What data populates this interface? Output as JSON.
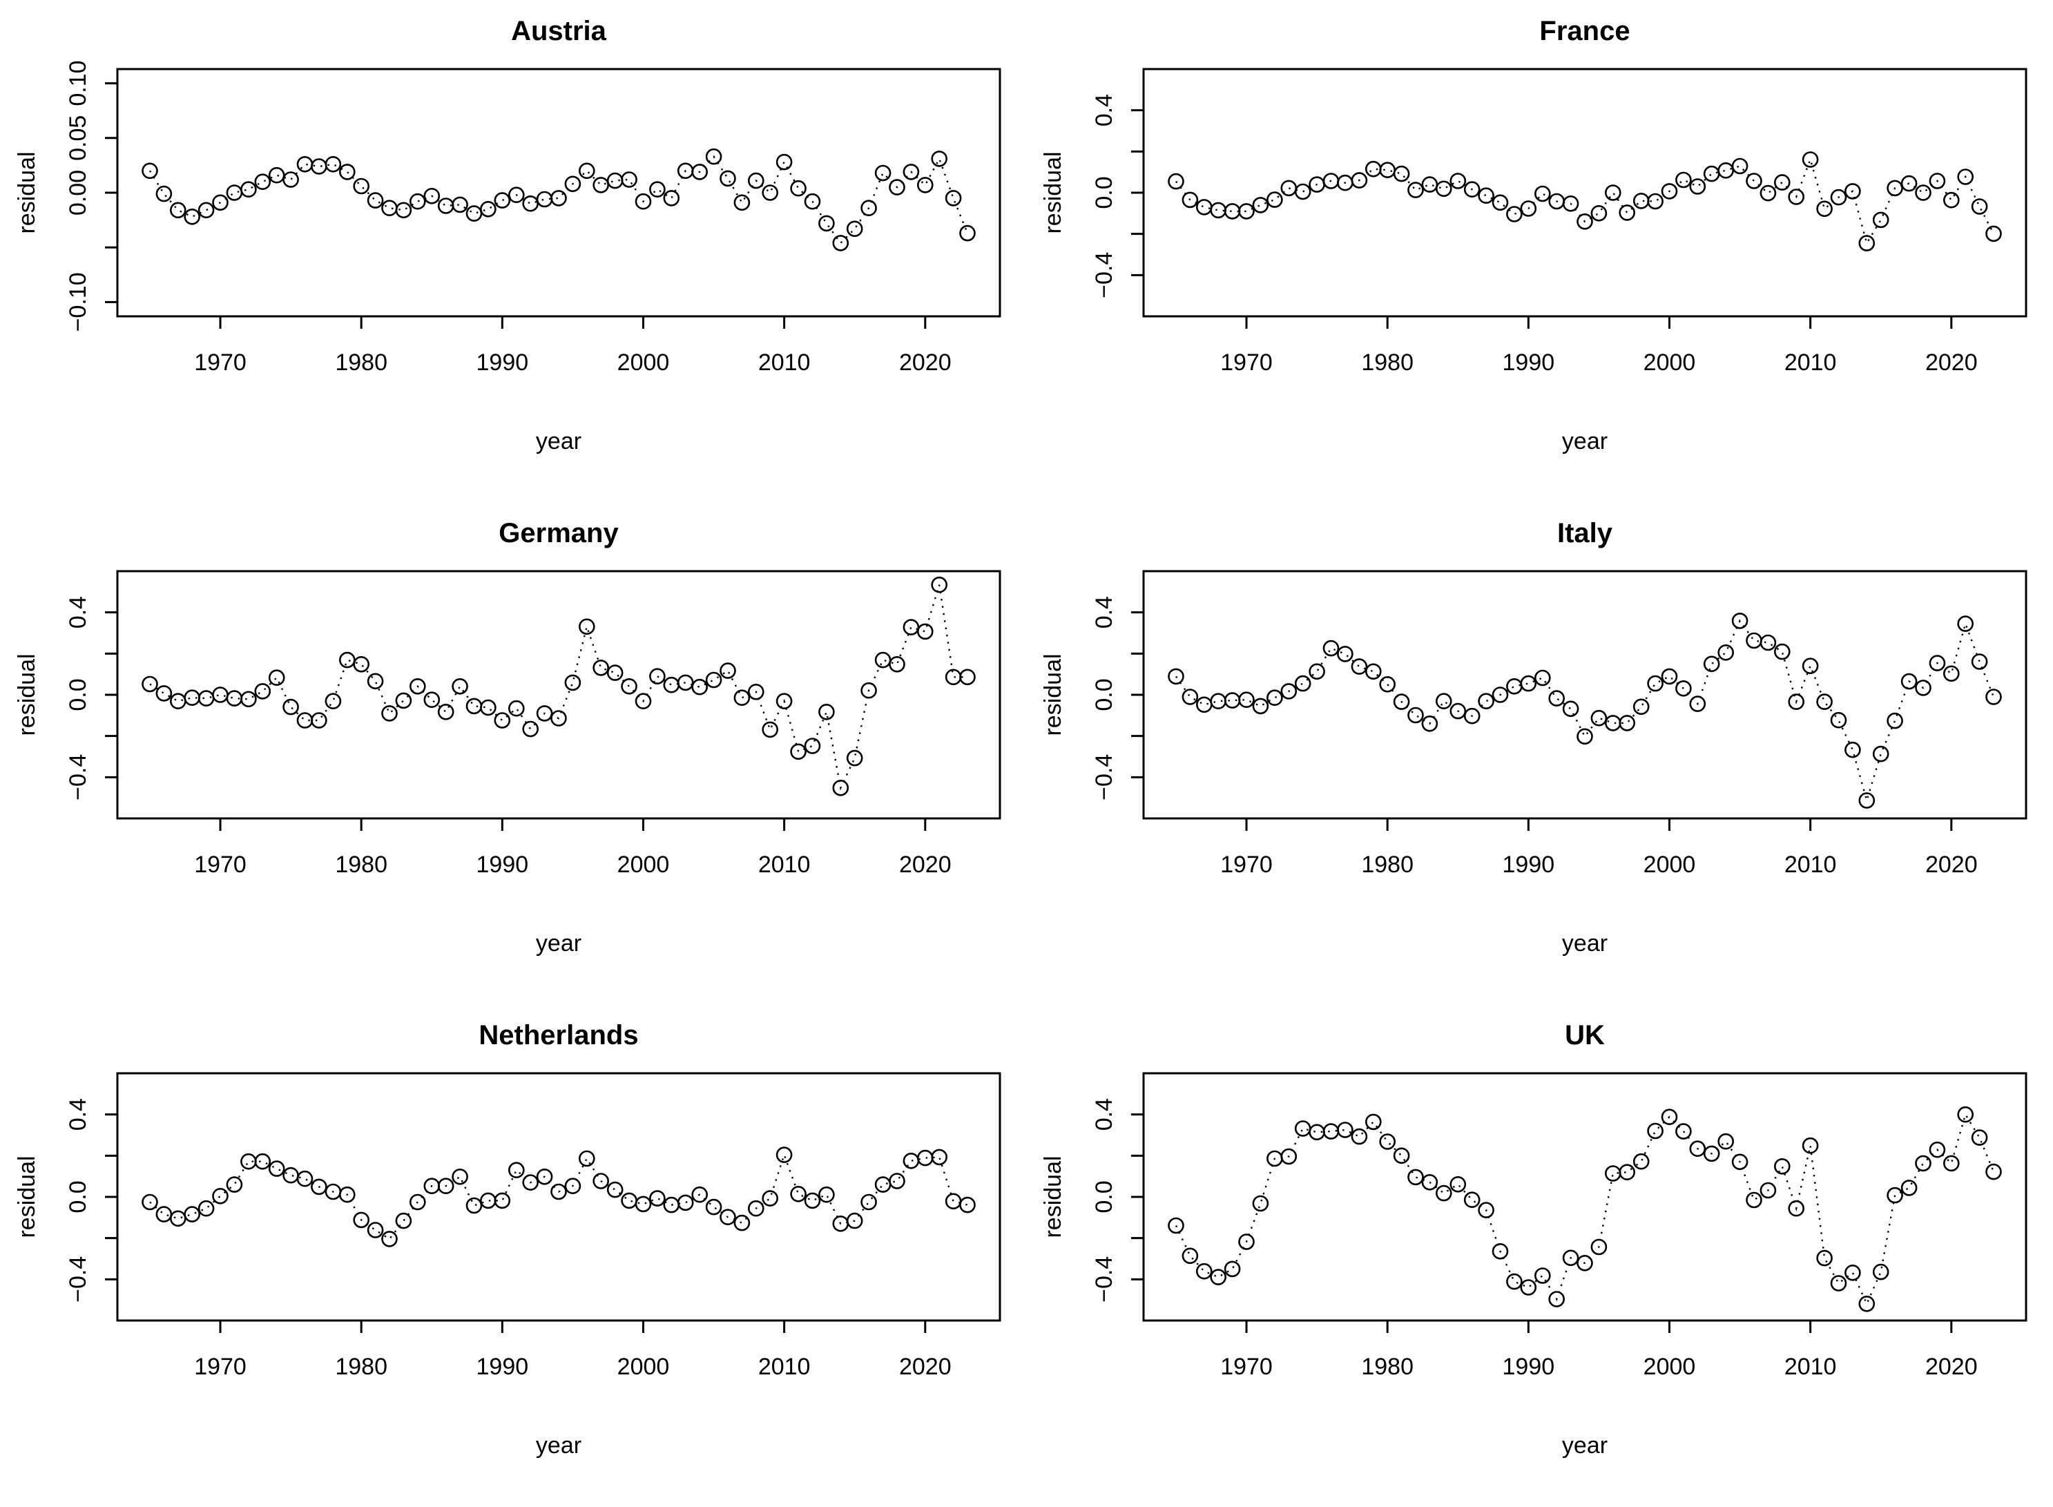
{
  "figure": {
    "background": "#ffffff",
    "foreground": "#000000",
    "rows": 3,
    "cols": 2,
    "panel_titles": [
      "Austria",
      "France",
      "Germany",
      "Italy",
      "Netherlands",
      "UK"
    ]
  },
  "chart_data": {
    "type": "scatter",
    "subtype": "points-with-dotted-line",
    "marker": "open-circle-icon",
    "line_style": "dotted",
    "point_color": "#000000",
    "line_color": "#000000",
    "grid": "off",
    "legend": "none",
    "xlabel": "year",
    "ylabel": "residual",
    "x": [
      1965,
      1966,
      1967,
      1968,
      1969,
      1970,
      1971,
      1972,
      1973,
      1974,
      1975,
      1976,
      1977,
      1978,
      1979,
      1980,
      1981,
      1982,
      1983,
      1984,
      1985,
      1986,
      1987,
      1988,
      1989,
      1990,
      1991,
      1992,
      1993,
      1994,
      1995,
      1996,
      1997,
      1998,
      1999,
      2000,
      2001,
      2002,
      2003,
      2004,
      2005,
      2006,
      2007,
      2008,
      2009,
      2010,
      2011,
      2012,
      2013,
      2014,
      2015,
      2016,
      2017,
      2018,
      2019,
      2020,
      2021,
      2022,
      2023
    ],
    "x_ticks": [
      1970,
      1980,
      1990,
      2000,
      2010,
      2020
    ],
    "x_tick_labels": [
      "1970",
      "1980",
      "1990",
      "2000",
      "2010",
      "2020"
    ],
    "xlim": [
      1962.7,
      2025.3
    ],
    "panels": [
      {
        "title": "Austria",
        "ylim": [
          -0.113,
          0.113
        ],
        "y_ticks": [
          -0.1,
          -0.05,
          0.0,
          0.05,
          0.1
        ],
        "y_tick_labels": [
          "−0.10",
          "",
          "0.00",
          "0.05",
          "0.10"
        ],
        "values": [
          0.02,
          -0.001,
          -0.016,
          -0.022,
          -0.016,
          -0.009,
          0.0,
          0.003,
          0.01,
          0.016,
          0.012,
          0.026,
          0.024,
          0.026,
          0.019,
          0.006,
          -0.007,
          -0.014,
          -0.016,
          -0.008,
          -0.003,
          -0.012,
          -0.011,
          -0.019,
          -0.015,
          -0.007,
          -0.002,
          -0.01,
          -0.006,
          -0.005,
          0.008,
          0.02,
          0.007,
          0.011,
          0.012,
          -0.008,
          0.003,
          -0.005,
          0.02,
          0.019,
          0.033,
          0.013,
          -0.009,
          0.011,
          0.0,
          0.028,
          0.004,
          -0.008,
          -0.028,
          -0.046,
          -0.033,
          -0.014,
          0.018,
          0.005,
          0.019,
          0.007,
          0.031,
          -0.005,
          -0.037
        ]
      },
      {
        "title": "France",
        "ylim": [
          -0.6,
          0.6
        ],
        "y_ticks": [
          -0.4,
          -0.2,
          0.0,
          0.2,
          0.4
        ],
        "y_tick_labels": [
          "−0.4",
          "",
          "0.0",
          "",
          "0.4"
        ],
        "values": [
          0.055,
          -0.035,
          -0.07,
          -0.085,
          -0.09,
          -0.09,
          -0.06,
          -0.034,
          0.022,
          0.005,
          0.04,
          0.057,
          0.048,
          0.06,
          0.115,
          0.11,
          0.092,
          0.013,
          0.04,
          0.019,
          0.057,
          0.016,
          -0.014,
          -0.048,
          -0.104,
          -0.077,
          -0.005,
          -0.042,
          -0.053,
          -0.14,
          -0.1,
          0.0,
          -0.097,
          -0.04,
          -0.042,
          0.007,
          0.062,
          0.03,
          0.092,
          0.108,
          0.129,
          0.057,
          -0.002,
          0.05,
          -0.02,
          0.161,
          -0.078,
          -0.022,
          0.007,
          -0.245,
          -0.132,
          0.022,
          0.045,
          0.0,
          0.057,
          -0.036,
          0.077,
          -0.067,
          -0.199
        ]
      },
      {
        "title": "Germany",
        "ylim": [
          -0.6,
          0.6
        ],
        "y_ticks": [
          -0.4,
          -0.2,
          0.0,
          0.2,
          0.4
        ],
        "y_tick_labels": [
          "−0.4",
          "",
          "0.0",
          "",
          "0.4"
        ],
        "values": [
          0.052,
          0.007,
          -0.031,
          -0.014,
          -0.017,
          0.0,
          -0.017,
          -0.021,
          0.017,
          0.083,
          -0.059,
          -0.124,
          -0.124,
          -0.031,
          0.169,
          0.148,
          0.066,
          -0.09,
          -0.028,
          0.041,
          -0.024,
          -0.083,
          0.041,
          -0.055,
          -0.062,
          -0.124,
          -0.066,
          -0.166,
          -0.09,
          -0.114,
          0.059,
          0.331,
          0.131,
          0.107,
          0.041,
          -0.031,
          0.09,
          0.048,
          0.059,
          0.038,
          0.072,
          0.117,
          -0.014,
          0.014,
          -0.169,
          -0.031,
          -0.276,
          -0.248,
          -0.083,
          -0.452,
          -0.307,
          0.021,
          0.169,
          0.148,
          0.328,
          0.307,
          0.534,
          0.086,
          0.086
        ]
      },
      {
        "title": "Italy",
        "ylim": [
          -0.6,
          0.6
        ],
        "y_ticks": [
          -0.4,
          -0.2,
          0.0,
          0.2,
          0.4
        ],
        "y_tick_labels": [
          "−0.4",
          "",
          "0.0",
          "",
          "0.4"
        ],
        "values": [
          0.089,
          -0.01,
          -0.048,
          -0.031,
          -0.027,
          -0.024,
          -0.055,
          -0.014,
          0.017,
          0.055,
          0.113,
          0.226,
          0.198,
          0.137,
          0.113,
          0.051,
          -0.034,
          -0.099,
          -0.14,
          -0.031,
          -0.079,
          -0.103,
          -0.031,
          0.0,
          0.041,
          0.055,
          0.082,
          -0.017,
          -0.068,
          -0.202,
          -0.113,
          -0.137,
          -0.137,
          -0.058,
          0.055,
          0.089,
          0.031,
          -0.044,
          0.15,
          0.205,
          0.359,
          0.263,
          0.253,
          0.209,
          -0.034,
          0.14,
          -0.034,
          -0.123,
          -0.267,
          -0.513,
          -0.287,
          -0.126,
          0.065,
          0.034,
          0.154,
          0.103,
          0.345,
          0.161,
          -0.01
        ]
      },
      {
        "title": "Netherlands",
        "ylim": [
          -0.6,
          0.6
        ],
        "y_ticks": [
          -0.4,
          -0.2,
          0.0,
          0.2,
          0.4
        ],
        "y_tick_labels": [
          "−0.4",
          "",
          "0.0",
          "",
          "0.4"
        ],
        "values": [
          -0.025,
          -0.084,
          -0.105,
          -0.084,
          -0.056,
          0.004,
          0.06,
          0.172,
          0.172,
          0.137,
          0.105,
          0.088,
          0.049,
          0.025,
          0.011,
          -0.112,
          -0.161,
          -0.204,
          -0.116,
          -0.025,
          0.053,
          0.053,
          0.098,
          -0.042,
          -0.018,
          -0.018,
          0.13,
          0.07,
          0.098,
          0.025,
          0.053,
          0.186,
          0.077,
          0.035,
          -0.018,
          -0.035,
          -0.007,
          -0.039,
          -0.028,
          0.011,
          -0.049,
          -0.098,
          -0.126,
          -0.056,
          -0.007,
          0.204,
          0.014,
          -0.018,
          0.011,
          -0.13,
          -0.116,
          -0.025,
          0.06,
          0.077,
          0.175,
          0.189,
          0.193,
          -0.021,
          -0.039
        ]
      },
      {
        "title": "UK",
        "ylim": [
          -0.6,
          0.6
        ],
        "y_ticks": [
          -0.4,
          -0.2,
          0.0,
          0.2,
          0.4
        ],
        "y_tick_labels": [
          "−0.4",
          "",
          "0.0",
          "",
          "0.4"
        ],
        "values": [
          -0.139,
          -0.286,
          -0.361,
          -0.389,
          -0.35,
          -0.218,
          -0.032,
          0.186,
          0.196,
          0.332,
          0.314,
          0.318,
          0.325,
          0.293,
          0.364,
          0.268,
          0.2,
          0.096,
          0.071,
          0.018,
          0.061,
          -0.014,
          -0.064,
          -0.264,
          -0.411,
          -0.439,
          -0.382,
          -0.496,
          -0.296,
          -0.321,
          -0.243,
          0.114,
          0.12,
          0.172,
          0.32,
          0.388,
          0.318,
          0.234,
          0.21,
          0.269,
          0.17,
          -0.015,
          0.032,
          0.148,
          -0.056,
          0.249,
          -0.297,
          -0.419,
          -0.368,
          -0.519,
          -0.364,
          0.008,
          0.044,
          0.163,
          0.229,
          0.163,
          0.4,
          0.288,
          0.122
        ]
      }
    ]
  }
}
